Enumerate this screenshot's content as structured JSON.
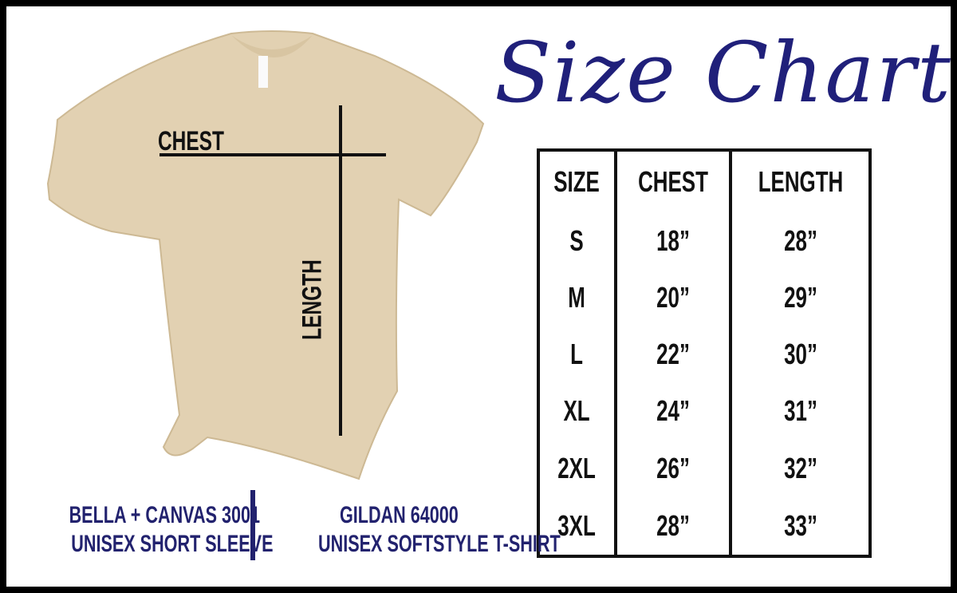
{
  "title": "Size Chart",
  "diagram": {
    "chest_label": "CHEST",
    "length_label": "LENGTH",
    "shirt_color": "#e2d1b2"
  },
  "table": {
    "headers": [
      "SIZE",
      "CHEST",
      "LENGTH"
    ],
    "rows": [
      [
        "S",
        "18”",
        "28”"
      ],
      [
        "M",
        "20”",
        "29”"
      ],
      [
        "L",
        "22”",
        "30”"
      ],
      [
        "XL",
        "24”",
        "31”"
      ],
      [
        "2XL",
        "26”",
        "32”"
      ],
      [
        "3XL",
        "28”",
        "33”"
      ]
    ]
  },
  "brands": [
    {
      "line1": "BELLA + CANVAS 3001",
      "line2": "UNISEX SHORT SLEEVE"
    },
    {
      "line1": "GILDAN 64000",
      "line2": "UNISEX SOFTSTYLE T-SHIRT"
    }
  ],
  "accent_color": "#22226e"
}
